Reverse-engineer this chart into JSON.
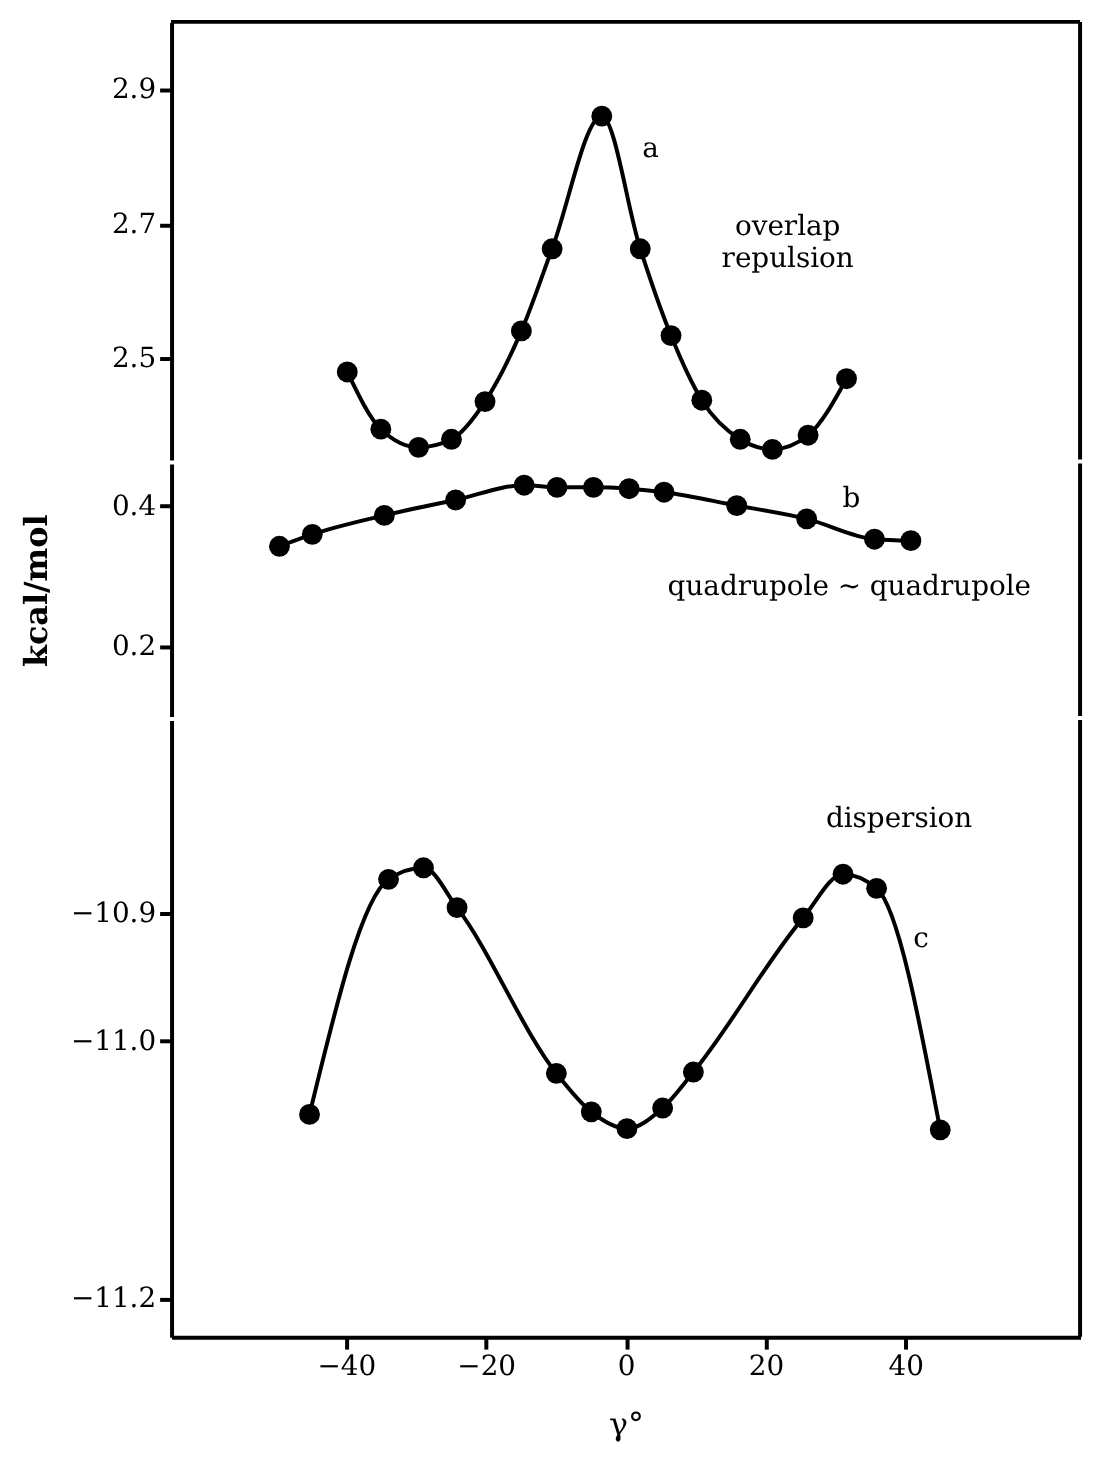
{
  "chart_data": [
    {
      "type": "line",
      "tick_labels": "y",
      "marker": "circle",
      "xlim": [
        -65,
        65
      ],
      "ylim": [
        2.35,
        3.0
      ],
      "yticks": [
        2.5,
        2.7,
        2.9
      ],
      "series": [
        {
          "color": "#000000",
          "x": [
            -39.8,
            -35,
            -29.6,
            -24.9,
            -20.1,
            -14.9,
            -10.5,
            -3.4,
            2.1,
            6.5,
            10.9,
            16.4,
            21,
            26.1,
            31.6
          ],
          "values": [
            2.48,
            2.395,
            2.368,
            2.38,
            2.436,
            2.541,
            2.663,
            2.86,
            2.663,
            2.534,
            2.438,
            2.38,
            2.365,
            2.386,
            2.47
          ]
        }
      ],
      "annotations": [
        "a",
        "overlap\nrepulsion"
      ]
    },
    {
      "type": "line",
      "tick_labels": "y",
      "marker": "circle",
      "xlim": [
        -65,
        65
      ],
      "ylim": [
        0.1,
        0.46
      ],
      "yticks": [
        0.2,
        0.4
      ],
      "ylabel": "kcal/mol",
      "series": [
        {
          "color": "#000000",
          "x": [
            -49.5,
            -44.8,
            -34.5,
            -24.3,
            -14.5,
            -9.8,
            -4.6,
            0.5,
            5.5,
            15.9,
            25.9,
            35.6,
            40.8
          ],
          "values": [
            0.342,
            0.359,
            0.386,
            0.408,
            0.429,
            0.426,
            0.426,
            0.424,
            0.419,
            0.4,
            0.381,
            0.352,
            0.35
          ]
        }
      ],
      "annotations": [
        "b",
        "quadrupole ∼ quadrupole"
      ]
    },
    {
      "type": "line",
      "marker": "circle",
      "xlim": [
        -65,
        65
      ],
      "ylim": [
        -11.23,
        -10.75
      ],
      "xticks": [
        -40,
        -20,
        0,
        20,
        40
      ],
      "yticks": [
        {
          "value": -10.9,
          "label": "−10.9"
        },
        {
          "value": -11.0,
          "label": "−11.0"
        },
        {
          "value": -11.2,
          "label": "−11.2"
        }
      ],
      "xlabel": "γ°",
      "series": [
        {
          "color": "#000000",
          "x": [
            -45.2,
            -33.9,
            -28.9,
            -24.1,
            -9.9,
            -4.9,
            0.2,
            5.3,
            9.7,
            25.4,
            31.1,
            35.9,
            45
          ],
          "values": [
            -11.057,
            -10.874,
            -10.865,
            -10.896,
            -11.025,
            -11.055,
            -11.068,
            -11.052,
            -11.024,
            -10.904,
            -10.87,
            -10.881,
            -11.069
          ]
        }
      ],
      "annotations": [
        "dispersion",
        "c"
      ]
    }
  ]
}
